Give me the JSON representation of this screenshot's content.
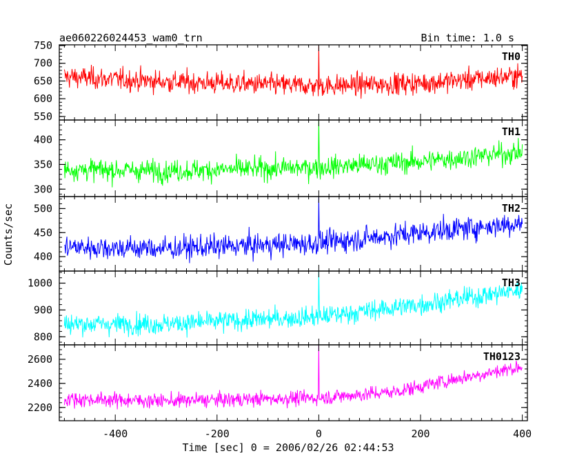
{
  "chart_data": {
    "type": "line",
    "title_left": "ae060226024453_wam0_trn",
    "title_right": "Bin time: 1.0 s",
    "xlabel": "Time [sec] 0 = 2006/02/26 02:44:53",
    "ylabel": "Counts/sec",
    "xlim": [
      -510,
      410
    ],
    "xticks": [
      -400,
      -200,
      0,
      200,
      400
    ],
    "bin_time_s": 1.0,
    "panels": [
      {
        "name": "TH0",
        "color": "#ff0000",
        "ylim": [
          540,
          752
        ],
        "yticks": [
          550,
          600,
          650,
          700,
          750
        ],
        "trend": [
          [
            -500,
            662
          ],
          [
            -300,
            648
          ],
          [
            0,
            636
          ],
          [
            200,
            644
          ],
          [
            400,
            665
          ]
        ],
        "noise": 28,
        "spike_t": 0,
        "spike_peak": 750
      },
      {
        "name": "TH1",
        "color": "#00ff00",
        "ylim": [
          285,
          440
        ],
        "yticks": [
          300,
          350,
          400
        ],
        "trend": [
          [
            -500,
            340
          ],
          [
            -300,
            337
          ],
          [
            0,
            344
          ],
          [
            200,
            356
          ],
          [
            400,
            375
          ]
        ],
        "noise": 20,
        "spike_t": 0,
        "spike_peak": 440
      },
      {
        "name": "TH2",
        "color": "#0000ff",
        "ylim": [
          370,
          525
        ],
        "yticks": [
          400,
          450,
          500
        ],
        "trend": [
          [
            -500,
            420
          ],
          [
            -300,
            417
          ],
          [
            0,
            428
          ],
          [
            200,
            450
          ],
          [
            400,
            470
          ]
        ],
        "noise": 22,
        "spike_t": 0,
        "spike_peak": 525
      },
      {
        "name": "TH3",
        "color": "#00ffff",
        "ylim": [
          770,
          1045
        ],
        "yticks": [
          800,
          900,
          1000
        ],
        "trend": [
          [
            -500,
            848
          ],
          [
            -300,
            848
          ],
          [
            0,
            875
          ],
          [
            200,
            920
          ],
          [
            400,
            975
          ]
        ],
        "noise": 35,
        "spike_t": 0,
        "spike_peak": 1045
      },
      {
        "name": "TH0123",
        "color": "#ff00ff",
        "ylim": [
          2090,
          2720
        ],
        "yticks": [
          2200,
          2400,
          2600
        ],
        "trend": [
          [
            -500,
            2270
          ],
          [
            -300,
            2255
          ],
          [
            0,
            2280
          ],
          [
            150,
            2330
          ],
          [
            250,
            2420
          ],
          [
            400,
            2540
          ]
        ],
        "noise": 55,
        "spike_t": 0,
        "spike_peak": 2720
      }
    ]
  }
}
